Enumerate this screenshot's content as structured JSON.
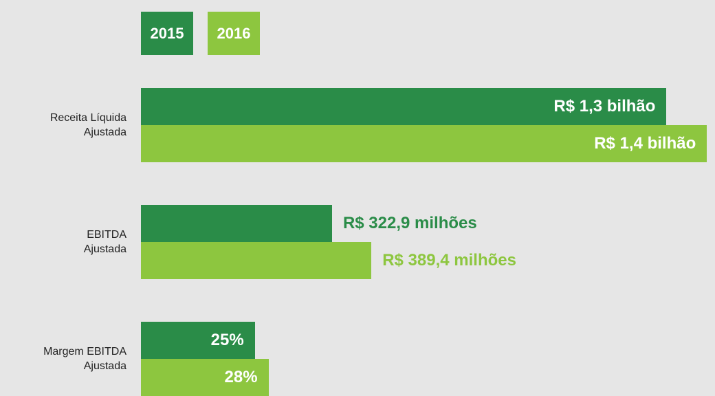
{
  "chart_data": [
    {
      "type": "bar",
      "orientation": "horizontal",
      "label_lines": [
        "Receita Líquida",
        "Ajustada"
      ],
      "xlim": [
        0,
        1.42
      ],
      "value_label_position": "inside",
      "series": [
        {
          "name": "2015",
          "color": "#2a8c48",
          "values": [
            1.3
          ],
          "value_labels": [
            "R$ 1,3 bilhão"
          ]
        },
        {
          "name": "2016",
          "color": "#8dc63f",
          "values": [
            1.4
          ],
          "value_labels": [
            "R$ 1,4 bilhão"
          ]
        }
      ]
    },
    {
      "type": "bar",
      "orientation": "horizontal",
      "label_lines": [
        "EBITDA",
        "Ajustada"
      ],
      "xlim": [
        0,
        970
      ],
      "value_label_position": "outside",
      "series": [
        {
          "name": "2015",
          "color": "#2a8c48",
          "values": [
            322.9
          ],
          "value_labels": [
            "R$ 322,9 milhões"
          ]
        },
        {
          "name": "2016",
          "color": "#8dc63f",
          "values": [
            389.4
          ],
          "value_labels": [
            "R$ 389,4 milhões"
          ]
        }
      ]
    },
    {
      "type": "bar",
      "orientation": "horizontal",
      "label_lines": [
        "Margem EBITDA",
        "Ajustada"
      ],
      "xlim": [
        0,
        126
      ],
      "value_label_position": "inside",
      "series": [
        {
          "name": "2015",
          "color": "#2a8c48",
          "values": [
            25
          ],
          "value_labels": [
            "25%"
          ]
        },
        {
          "name": "2016",
          "color": "#8dc63f",
          "values": [
            28
          ],
          "value_labels": [
            "28%"
          ]
        }
      ]
    }
  ]
}
